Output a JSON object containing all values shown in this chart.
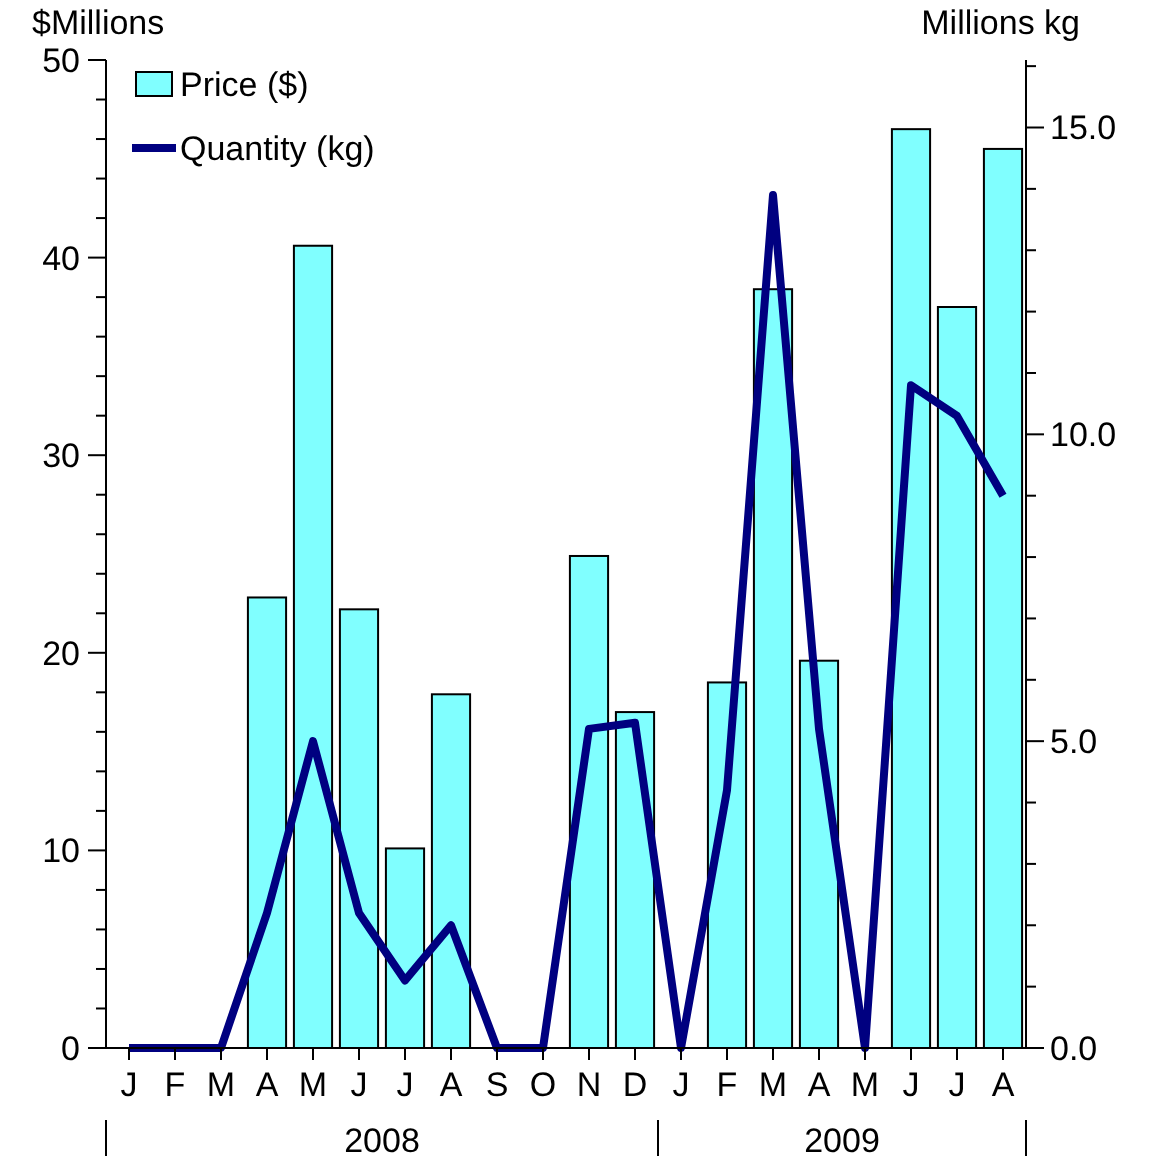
{
  "chart_data": {
    "type": "bar",
    "ylabel": "$Millions",
    "y2label": "Millions kg",
    "categories": [
      "J",
      "F",
      "M",
      "A",
      "M",
      "J",
      "J",
      "A",
      "S",
      "O",
      "N",
      "D",
      "J",
      "F",
      "M",
      "A",
      "M",
      "J",
      "J",
      "A"
    ],
    "series": [
      {
        "name": "Price ($)",
        "color": "#80ffff",
        "values": [
          0,
          0,
          0,
          22.8,
          40.6,
          22.2,
          10.1,
          17.9,
          0,
          0,
          24.9,
          17.0,
          0,
          18.5,
          38.4,
          19.6,
          0,
          46.5,
          37.5,
          45.5
        ]
      },
      {
        "name": "Quantity (kg)",
        "type": "line",
        "axis": "y2",
        "color": "#000080",
        "values": [
          0,
          0,
          0,
          2.2,
          5.0,
          2.2,
          1.1,
          2.0,
          0,
          0,
          5.2,
          5.3,
          0,
          4.2,
          13.9,
          5.2,
          0,
          10.8,
          10.3,
          9.0
        ]
      }
    ],
    "ylim": [
      0,
      50
    ],
    "yticks": [
      0,
      {
        "value": 2,
        "label": null
      },
      {
        "value": 4,
        "label": null
      },
      {
        "value": 6,
        "label": null
      },
      {
        "value": 8,
        "label": null
      },
      10,
      {
        "value": 12,
        "label": null
      },
      {
        "value": 14,
        "label": null
      },
      {
        "value": 16,
        "label": null
      },
      {
        "value": 18,
        "label": null
      },
      20,
      {
        "value": 22,
        "label": null
      },
      {
        "value": 24,
        "label": null
      },
      {
        "value": 26,
        "label": null
      },
      {
        "value": 28,
        "label": null
      },
      30,
      {
        "value": 32,
        "label": null
      },
      {
        "value": 34,
        "label": null
      },
      {
        "value": 36,
        "label": null
      },
      {
        "value": 38,
        "label": null
      },
      40,
      {
        "value": 42,
        "label": null
      },
      {
        "value": 44,
        "label": null
      },
      {
        "value": 46,
        "label": null
      },
      {
        "value": 48,
        "label": null
      },
      50
    ],
    "y2lim": [
      0,
      16.1
    ],
    "y2ticks": [
      {
        "value": 0,
        "label": "0.0"
      },
      {
        "value": 1,
        "label": null
      },
      {
        "value": 2,
        "label": null
      },
      {
        "value": 3,
        "label": null
      },
      {
        "value": 4,
        "label": null
      },
      {
        "value": 5,
        "label": "5.0"
      },
      {
        "value": 6,
        "label": null
      },
      {
        "value": 7,
        "label": null
      },
      {
        "value": 8,
        "label": null
      },
      {
        "value": 9,
        "label": null
      },
      {
        "value": 10,
        "label": "10.0"
      },
      {
        "value": 11,
        "label": null
      },
      {
        "value": 12,
        "label": null
      },
      {
        "value": 13,
        "label": null
      },
      {
        "value": 14,
        "label": null
      },
      {
        "value": 15,
        "label": "15.0"
      },
      {
        "value": 16,
        "label": null
      }
    ],
    "annotations": [
      "2008",
      "2009"
    ],
    "legend": "top left",
    "grid": false
  }
}
